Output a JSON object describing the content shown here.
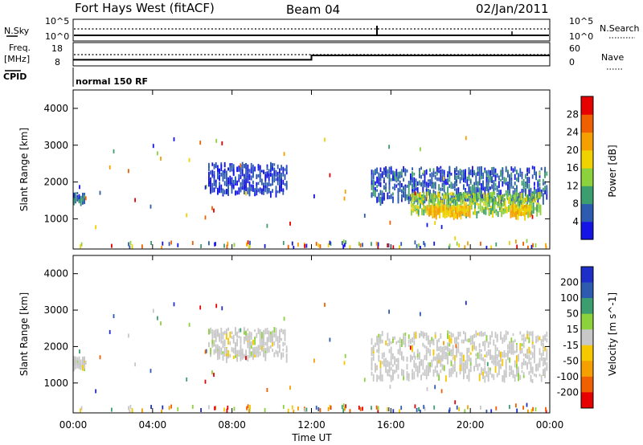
{
  "header": {
    "title": "Fort Hays West (fitACF)",
    "beam": "Beam 04",
    "date": "02/Jan/2011"
  },
  "noise_panel": {
    "left_label": "N.Sky",
    "right_label": "N.Search",
    "tick_top": "10^5",
    "tick_bottom": "10^0",
    "right_tick_top": "10^5",
    "right_tick_bottom": "10^0"
  },
  "freq_panel": {
    "left_label_line1": "Freq.",
    "left_label_line2": "[MHz]",
    "left_tick_top": "18",
    "left_tick_bottom": "8",
    "right_label": "Nave",
    "right_tick_top": "60",
    "right_tick_bottom": "0"
  },
  "cpid_panel": {
    "label": "CPID",
    "mode": "normal 150 RF"
  },
  "x_axis": {
    "label": "Time UT",
    "ticks": [
      "00:00",
      "04:00",
      "08:00",
      "12:00",
      "16:00",
      "20:00",
      "00:00"
    ]
  },
  "power_panel": {
    "ylabel": "Slant Range [km]",
    "yticks": [
      "1000",
      "2000",
      "3000",
      "4000"
    ],
    "colorbar_label": "Power [dB]",
    "colorbar_ticks": [
      "4",
      "8",
      "12",
      "16",
      "20",
      "24",
      "28"
    ],
    "colors": [
      "#1414e6",
      "#2d5bb0",
      "#3c9e6e",
      "#8cd23c",
      "#f0d200",
      "#f5a000",
      "#f06000",
      "#e60000"
    ]
  },
  "velocity_panel": {
    "ylabel": "Slant Range [km]",
    "yticks": [
      "1000",
      "2000",
      "3000",
      "4000"
    ],
    "colorbar_label": "Velocity [m s^-1]",
    "colorbar_ticks": [
      "200",
      "100",
      "50",
      "15",
      "-15",
      "-50",
      "-100",
      "-200"
    ],
    "colors": [
      "#1e2ec8",
      "#2d5bb0",
      "#3c9e6e",
      "#8cd23c",
      "#c8c8c8",
      "#f5c800",
      "#f5a000",
      "#f06000",
      "#e60000"
    ]
  },
  "chart_data": {
    "type": "heatmap",
    "x_range_hours": [
      0,
      24
    ],
    "y_range_km": [
      180,
      4500
    ],
    "frequency_mhz": [
      {
        "start_hour": 0,
        "end_hour": 12,
        "value": 10
      },
      {
        "start_hour": 12,
        "end_hour": 24,
        "value": 13
      }
    ],
    "power_regions": [
      {
        "start_hour": 0.0,
        "end_hour": 0.6,
        "range_km": [
          1450,
          1700
        ],
        "power_db": 6
      },
      {
        "start_hour": 6.8,
        "end_hour": 10.8,
        "range_km": [
          1700,
          2500
        ],
        "power_db": 4
      },
      {
        "start_hour": 15.0,
        "end_hour": 23.9,
        "range_km": [
          1500,
          2400
        ],
        "power_db": 6
      },
      {
        "start_hour": 17.0,
        "end_hour": 23.5,
        "range_km": [
          1150,
          1700
        ],
        "power_db": 14
      },
      {
        "start_hour": 17.8,
        "end_hour": 20.0,
        "range_km": [
          1100,
          1350
        ],
        "power_db": 20
      },
      {
        "start_hour": 22.0,
        "end_hour": 23.0,
        "range_km": [
          1100,
          1350
        ],
        "power_db": 20
      }
    ],
    "velocity_regions": [
      {
        "start_hour": 0.0,
        "end_hour": 0.6,
        "range_km": [
          1450,
          1700
        ],
        "velocity": 0
      },
      {
        "start_hour": 6.8,
        "end_hour": 10.8,
        "range_km": [
          1700,
          2500
        ],
        "velocity": 0
      },
      {
        "start_hour": 15.0,
        "end_hour": 23.9,
        "range_km": [
          1150,
          2400
        ],
        "velocity": 0
      }
    ]
  }
}
